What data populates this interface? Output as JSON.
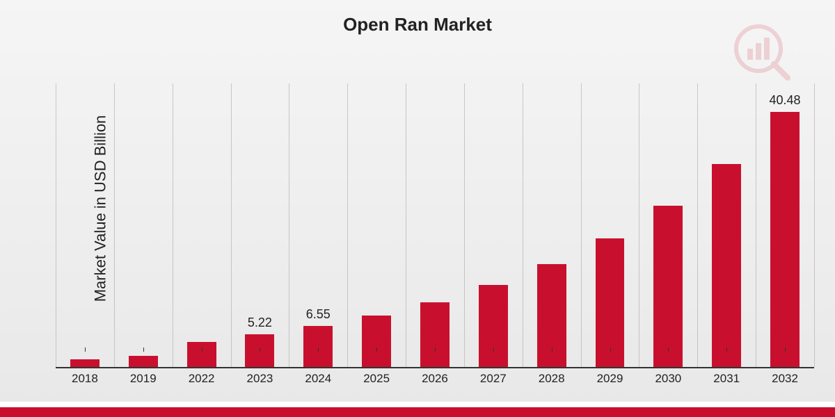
{
  "chart": {
    "type": "bar",
    "title": "Open Ran Market",
    "title_fontsize": 26,
    "y_axis_label": "Market Value in USD Billion",
    "y_axis_label_fontsize": 22,
    "categories": [
      "2018",
      "2019",
      "2022",
      "2023",
      "2024",
      "2025",
      "2026",
      "2027",
      "2028",
      "2029",
      "2030",
      "2031",
      "2032"
    ],
    "values": [
      1.2,
      1.8,
      4.0,
      5.22,
      6.55,
      8.2,
      10.3,
      13.0,
      16.3,
      20.4,
      25.6,
      32.2,
      40.48
    ],
    "value_labels": [
      "",
      "",
      "",
      "5.22",
      "6.55",
      "",
      "",
      "",
      "",
      "",
      "",
      "",
      "40.48"
    ],
    "bar_color": "#c8102e",
    "background_gradient_top": "#f5f5f5",
    "background_gradient_bottom": "#e8e8e8",
    "grid_color": "#aaaaaa",
    "axis_color": "#333333",
    "text_color": "#222222",
    "x_tick_fontsize": 17,
    "value_label_fontsize": 18,
    "ylim_max": 45,
    "bar_width_ratio": 0.5,
    "bottom_stripe_white": "#ffffff",
    "bottom_stripe_red": "#c8102e",
    "watermark_color": "#c8102e",
    "watermark_opacity": 0.15
  }
}
